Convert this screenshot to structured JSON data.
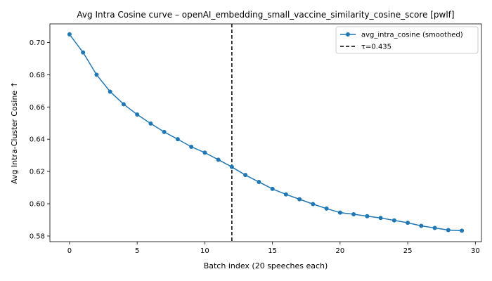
{
  "chart_data": {
    "type": "line",
    "title": "Avg Intra Cosine curve – openAI_embedding_small_vaccine_similarity_cosine_score [pwlf]",
    "xlabel": "Batch index (20 speeches each)",
    "ylabel": "Avg Intra-Cluster Cosine ↑",
    "xlim": [
      -1.45,
      30.45
    ],
    "ylim": [
      0.5765,
      0.7115
    ],
    "x_ticks": [
      0,
      5,
      10,
      15,
      20,
      25,
      30
    ],
    "y_ticks": [
      0.58,
      0.6,
      0.62,
      0.64,
      0.66,
      0.68,
      0.7
    ],
    "y_tick_labels": [
      "0.58",
      "0.60",
      "0.62",
      "0.64",
      "0.66",
      "0.68",
      "0.70"
    ],
    "grid": false,
    "legend_position": "top-right",
    "x": [
      0,
      1,
      2,
      3,
      4,
      5,
      6,
      7,
      8,
      9,
      10,
      11,
      12,
      13,
      14,
      15,
      16,
      17,
      18,
      19,
      20,
      21,
      22,
      23,
      24,
      25,
      26,
      27,
      28,
      29
    ],
    "series": [
      {
        "name": "avg_intra_cosine (smoothed)",
        "color": "#1f77b4",
        "values": [
          0.705,
          0.6938,
          0.68,
          0.6695,
          0.6617,
          0.6553,
          0.6497,
          0.6445,
          0.64,
          0.6353,
          0.6317,
          0.6273,
          0.6228,
          0.6178,
          0.6135,
          0.6092,
          0.6058,
          0.6028,
          0.5998,
          0.597,
          0.5945,
          0.5935,
          0.5923,
          0.5912,
          0.5897,
          0.5882,
          0.5863,
          0.585,
          0.5837,
          0.5833
        ]
      }
    ],
    "threshold": {
      "label": "τ=0.435",
      "x": 12,
      "color": "#000000",
      "style": "dashed"
    }
  }
}
